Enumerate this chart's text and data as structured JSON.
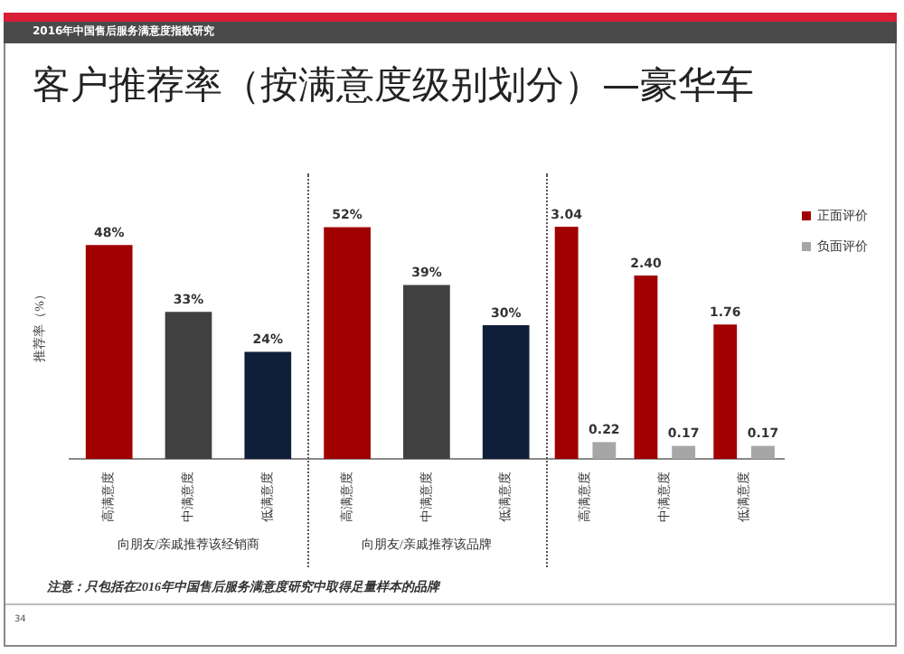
{
  "chart_data": {
    "type": "bar",
    "subtitle": "2016年中国售后服务满意度指数研究",
    "title": "客户推荐率（按满意度级别划分）—豪华车",
    "ylabel": "推荐率（%）",
    "categories": [
      "高满意度",
      "中满意度",
      "低满意度",
      "高满意度",
      "中满意度",
      "低满意度",
      "高满意度",
      "中满意度",
      "低满意度"
    ],
    "series": [
      {
        "colors": [
          "#a00000",
          "#404040",
          "#0f1f3a",
          "#a00000",
          "#404040",
          "#0f1f3a",
          null,
          null,
          null
        ],
        "values": [
          48,
          33,
          24,
          52,
          39,
          30,
          null,
          null,
          null
        ],
        "value_labels": [
          "48%",
          "33%",
          "24%",
          "52%",
          "39%",
          "30%",
          null,
          null,
          null
        ]
      },
      {
        "name": "正面评价",
        "color": "#a00000",
        "axis": "y2",
        "values": [
          null,
          null,
          null,
          null,
          null,
          null,
          3.04,
          2.4,
          1.76
        ],
        "value_labels": [
          null,
          null,
          null,
          null,
          null,
          null,
          "3.04",
          "2.40",
          "1.76"
        ]
      },
      {
        "name": "负面评价",
        "color": "#a6a6a6",
        "axis": "y2",
        "values": [
          null,
          null,
          null,
          null,
          null,
          null,
          0.22,
          0.17,
          0.17
        ],
        "value_labels": [
          null,
          null,
          null,
          null,
          null,
          null,
          "0.22",
          "0.17",
          "0.17"
        ]
      }
    ],
    "legend": "top right",
    "grid": false,
    "annotations": [
      "向朋友/亲戚推荐该经销商",
      "向朋友/亲戚推荐该品牌",
      "注意：只包括在2016年中国售后服务满意度研究中取得足量样本的品牌",
      "34"
    ]
  }
}
